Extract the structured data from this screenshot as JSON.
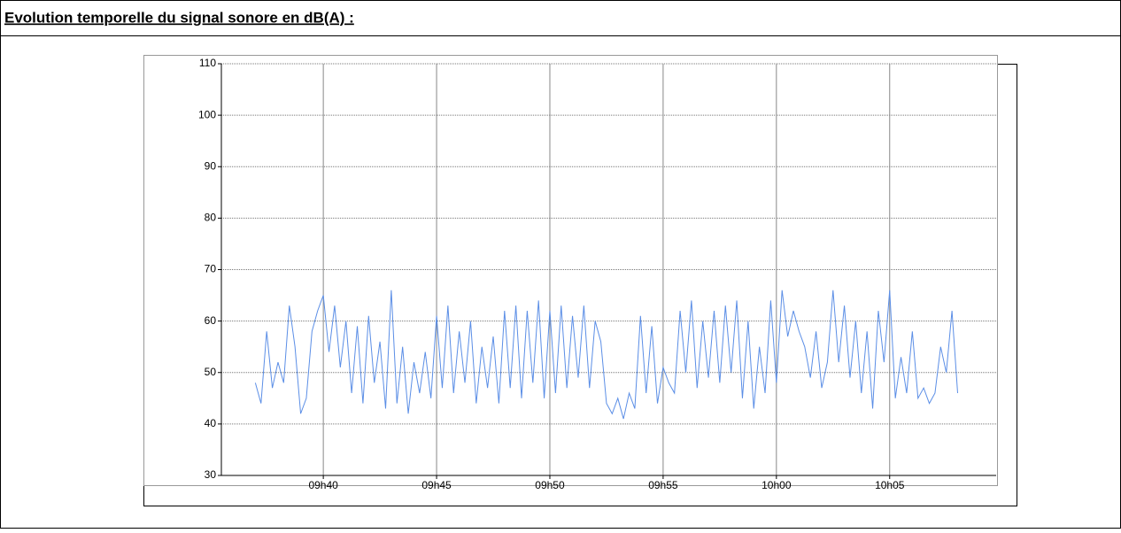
{
  "header": {
    "title": "Evolution temporelle du signal sonore en dB(A) :"
  },
  "chart_data": {
    "type": "line",
    "x": [
      577,
      577.25,
      577.5,
      577.75,
      578,
      578.25,
      578.5,
      578.75,
      579,
      579.25,
      579.5,
      579.75,
      580,
      580.25,
      580.5,
      580.75,
      581,
      581.25,
      581.5,
      581.75,
      582,
      582.25,
      582.5,
      582.75,
      583,
      583.25,
      583.5,
      583.75,
      584,
      584.25,
      584.5,
      584.75,
      585,
      585.25,
      585.5,
      585.75,
      586,
      586.25,
      586.5,
      586.75,
      587,
      587.25,
      587.5,
      587.75,
      588,
      588.25,
      588.5,
      588.75,
      589,
      589.25,
      589.5,
      589.75,
      590,
      590.25,
      590.5,
      590.75,
      591,
      591.25,
      591.5,
      591.75,
      592,
      592.25,
      592.5,
      592.75,
      593,
      593.25,
      593.5,
      593.75,
      594,
      594.25,
      594.5,
      594.75,
      595,
      595.25,
      595.5,
      595.75,
      596,
      596.25,
      596.5,
      596.75,
      597,
      597.25,
      597.5,
      597.75,
      598,
      598.25,
      598.5,
      598.75,
      599,
      599.25,
      599.5,
      599.75,
      600,
      600.25,
      600.5,
      600.75,
      601,
      601.25,
      601.5,
      601.75,
      602,
      602.25,
      602.5,
      602.75,
      603,
      603.25,
      603.5,
      603.75,
      604,
      604.25,
      604.5,
      604.75,
      605,
      605.25,
      605.5,
      605.75,
      606,
      606.25,
      606.5,
      606.75,
      607,
      607.25,
      607.5,
      607.75,
      608
    ],
    "series": [
      {
        "color": "#5b8ee6",
        "values": [
          48,
          44,
          58,
          47,
          52,
          48,
          63,
          55,
          42,
          45,
          58,
          62,
          65,
          54,
          63,
          51,
          60,
          46,
          59,
          44,
          61,
          48,
          56,
          43,
          66,
          44,
          55,
          42,
          52,
          46,
          54,
          45,
          61,
          47,
          63,
          46,
          58,
          48,
          60,
          44,
          55,
          47,
          57,
          44,
          62,
          47,
          63,
          45,
          62,
          48,
          64,
          45,
          62,
          46,
          63,
          47,
          61,
          49,
          63,
          47,
          60,
          56,
          44,
          42,
          45,
          41,
          46,
          43,
          61,
          46,
          59,
          44,
          51,
          48,
          46,
          62,
          50,
          64,
          47,
          60,
          49,
          62,
          48,
          63,
          50,
          64,
          45,
          60,
          43,
          55,
          46,
          64,
          48,
          66,
          57,
          62,
          58,
          55,
          49,
          58,
          47,
          52,
          66,
          52,
          63,
          49,
          60,
          46,
          58,
          43,
          62,
          52,
          66,
          45,
          53,
          46,
          58,
          45,
          47,
          44,
          46,
          55,
          50,
          62,
          46
        ]
      }
    ],
    "xlim": [
      575.5,
      609.7
    ],
    "xticks": [
      {
        "value": 580,
        "label": "09h40"
      },
      {
        "value": 585,
        "label": "09h45"
      },
      {
        "value": 590,
        "label": "09h50"
      },
      {
        "value": 595,
        "label": "09h55"
      },
      {
        "value": 600,
        "label": "10h00"
      },
      {
        "value": 605,
        "label": "10h05"
      }
    ],
    "ylim": [
      30,
      110
    ],
    "yticks": [
      30,
      40,
      50,
      60,
      70,
      80,
      90,
      100,
      110
    ],
    "grid": true
  }
}
